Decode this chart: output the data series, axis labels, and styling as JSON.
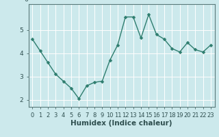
{
  "x": [
    0,
    1,
    2,
    3,
    4,
    5,
    6,
    7,
    8,
    9,
    10,
    11,
    12,
    13,
    14,
    15,
    16,
    17,
    18,
    19,
    20,
    21,
    22,
    23
  ],
  "y": [
    4.6,
    4.1,
    3.6,
    3.1,
    2.8,
    2.5,
    2.05,
    2.6,
    2.75,
    2.8,
    3.7,
    4.35,
    5.55,
    5.55,
    4.65,
    5.65,
    4.8,
    4.6,
    4.2,
    4.05,
    4.45,
    4.15,
    4.05,
    4.35
  ],
  "line_color": "#2e7d6e",
  "marker": "D",
  "marker_size": 2.5,
  "background_color": "#cce9ec",
  "grid_color": "#b0d8dc",
  "xlabel": "Humidex (Indice chaleur)",
  "ylim": [
    1.7,
    6.1
  ],
  "xlim": [
    -0.5,
    23.5
  ],
  "yticks": [
    2,
    3,
    4,
    5
  ],
  "ytick_labels": [
    "2",
    "3",
    "4",
    "5"
  ],
  "xtick_labels": [
    "0",
    "1",
    "2",
    "3",
    "4",
    "5",
    "6",
    "7",
    "8",
    "9",
    "10",
    "11",
    "12",
    "13",
    "14",
    "15",
    "16",
    "17",
    "18",
    "19",
    "20",
    "21",
    "22",
    "23"
  ],
  "tick_color": "#2e4e4e",
  "label_fontsize": 6.5,
  "xlabel_fontsize": 7.5,
  "axis_color": "#5a7a7a",
  "line_width": 1.0
}
